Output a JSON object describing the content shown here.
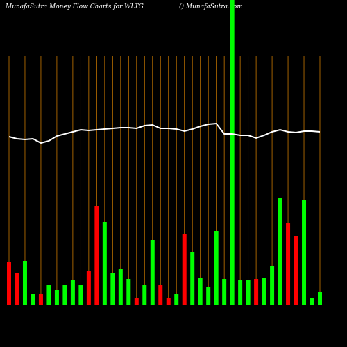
{
  "chart_data": {
    "type": "bar",
    "title": "MunafaSutra  Money Flow  Charts for WLTG",
    "subtitle": "() MunafaSutra.com",
    "values": [
      62,
      46,
      64,
      17,
      16,
      30,
      22,
      30,
      36,
      30,
      50,
      143,
      120,
      46,
      52,
      38,
      10,
      30,
      94,
      30,
      11,
      17,
      103,
      77,
      40,
      26,
      107,
      38,
      440,
      36,
      36,
      38,
      40,
      56,
      155,
      119,
      100,
      152,
      11,
      19
    ],
    "colors": [
      "#ff0000",
      "#ff0000",
      "#00ff00",
      "#00ff00",
      "#ff0000",
      "#00ff00",
      "#00ff00",
      "#00ff00",
      "#00ff00",
      "#00ff00",
      "#ff0000",
      "#ff0000",
      "#00ff00",
      "#00ff00",
      "#00ff00",
      "#00ff00",
      "#ff0000",
      "#00ff00",
      "#00ff00",
      "#ff0000",
      "#ff0000",
      "#00ff00",
      "#ff0000",
      "#00ff00",
      "#00ff00",
      "#00ff00",
      "#00ff00",
      "#00ff00",
      "#00ff00",
      "#00ff00",
      "#00ff00",
      "#ff0000",
      "#00ff00",
      "#00ff00",
      "#00ff00",
      "#ff0000",
      "#ff0000",
      "#00ff00",
      "#00ff00",
      "#00ff00"
    ],
    "line": [
      243,
      240,
      239,
      240,
      234,
      237,
      244,
      247,
      250,
      253,
      252,
      253,
      254,
      255,
      256,
      256,
      255,
      259,
      260,
      255,
      255,
      254,
      251,
      254,
      258,
      261,
      262,
      247,
      247,
      245,
      245,
      241,
      245,
      250,
      253,
      250,
      249,
      251,
      251,
      250
    ],
    "line_color": "#ffffff",
    "ylim": [
      0,
      440
    ]
  }
}
